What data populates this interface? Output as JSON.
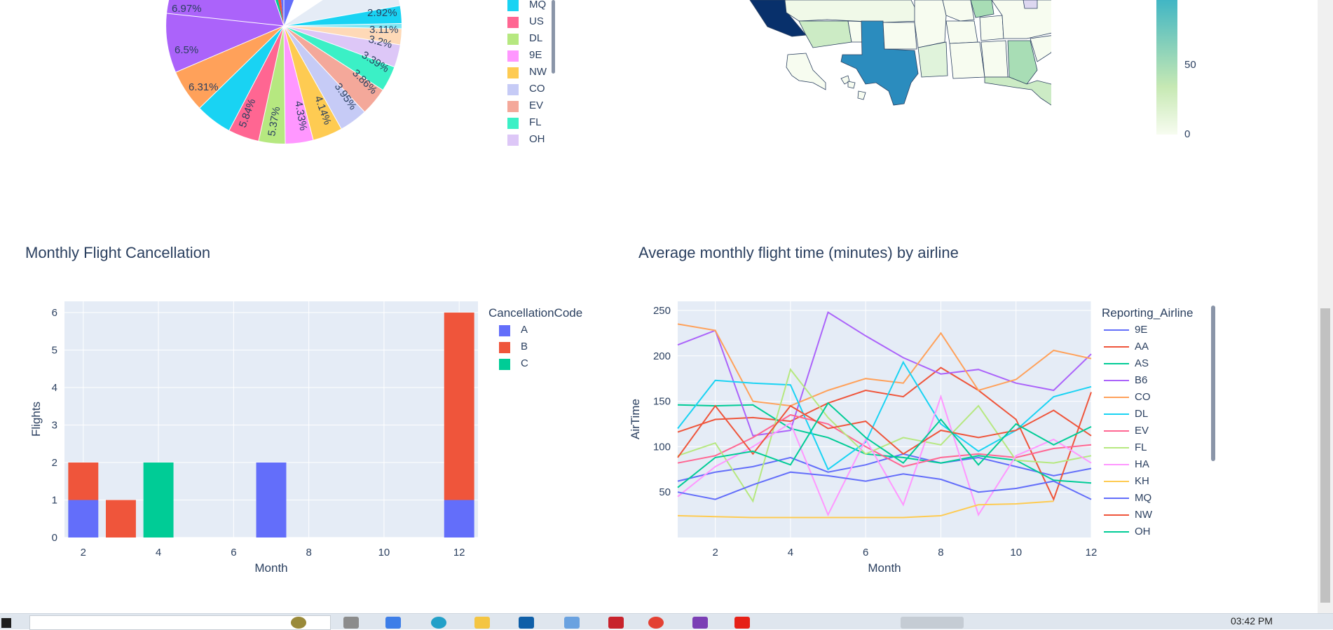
{
  "pie_chart": {
    "labels": [
      "6.97%",
      "6.5%",
      "6.31%",
      "5.84%",
      "5.37%",
      "4.33%",
      "4.14%",
      "3.95%",
      "3.86%",
      "3.39%",
      "3.2%",
      "3.11%",
      "2.92%"
    ],
    "legend": [
      {
        "name": "MQ",
        "color": "#19d3f3"
      },
      {
        "name": "US",
        "color": "#ff6692"
      },
      {
        "name": "DL",
        "color": "#b6e880"
      },
      {
        "name": "9E",
        "color": "#ff97ff"
      },
      {
        "name": "NW",
        "color": "#fecb52"
      },
      {
        "name": "CO",
        "color": "#c6cbf6"
      },
      {
        "name": "EV",
        "color": "#f4a89a"
      },
      {
        "name": "FL",
        "color": "#3bf0c6"
      },
      {
        "name": "OH",
        "color": "#ddc7f7"
      }
    ]
  },
  "map_colorbar": {
    "ticks": [
      "50",
      "0"
    ]
  },
  "bar_chart": {
    "title": "Monthly Flight Cancellation",
    "xlabel": "Month",
    "ylabel": "Flights",
    "legend_title": "CancellationCode",
    "legend": [
      {
        "name": "A",
        "color": "#636efa"
      },
      {
        "name": "B",
        "color": "#ef553b"
      },
      {
        "name": "C",
        "color": "#00cc96"
      }
    ],
    "x_ticks": [
      "2",
      "4",
      "6",
      "8",
      "10",
      "12"
    ],
    "y_ticks": [
      "0",
      "1",
      "2",
      "3",
      "4",
      "5",
      "6"
    ]
  },
  "line_chart": {
    "title": "Average monthly flight time (minutes) by airline",
    "xlabel": "Month",
    "ylabel": "AirTime",
    "legend_title": "Reporting_Airline",
    "x_ticks": [
      "2",
      "4",
      "6",
      "8",
      "10",
      "12"
    ],
    "y_ticks": [
      "50",
      "100",
      "150",
      "200",
      "250"
    ],
    "legend": [
      {
        "name": "9E",
        "color": "#636efa"
      },
      {
        "name": "AA",
        "color": "#ef553b"
      },
      {
        "name": "AS",
        "color": "#00cc96"
      },
      {
        "name": "B6",
        "color": "#ab63fa"
      },
      {
        "name": "CO",
        "color": "#ffa15a"
      },
      {
        "name": "DL",
        "color": "#19d3f3"
      },
      {
        "name": "EV",
        "color": "#ff6692"
      },
      {
        "name": "FL",
        "color": "#b6e880"
      },
      {
        "name": "HA",
        "color": "#ff97ff"
      },
      {
        "name": "KH",
        "color": "#fecb52"
      },
      {
        "name": "MQ",
        "color": "#636efa"
      },
      {
        "name": "NW",
        "color": "#ef553b"
      },
      {
        "name": "OH",
        "color": "#00cc96"
      }
    ]
  },
  "chart_data": [
    {
      "type": "bar",
      "title": "Monthly Flight Cancellation",
      "xlabel": "Month",
      "ylabel": "Flights",
      "legend_title": "CancellationCode",
      "ylim": [
        0,
        6.3
      ],
      "xlim": [
        1.5,
        12.5
      ],
      "series": [
        {
          "name": "A",
          "color": "#636efa",
          "points": [
            {
              "x": 2,
              "y": 1
            },
            {
              "x": 7,
              "y": 2
            },
            {
              "x": 12,
              "y": 1
            }
          ]
        },
        {
          "name": "B",
          "color": "#ef553b",
          "points": [
            {
              "x": 2,
              "y": 1
            },
            {
              "x": 3,
              "y": 1
            },
            {
              "x": 12,
              "y": 5
            }
          ]
        },
        {
          "name": "C",
          "color": "#00cc96",
          "points": [
            {
              "x": 4,
              "y": 2
            }
          ]
        }
      ]
    },
    {
      "type": "line",
      "title": "Average monthly flight time (minutes) by airline",
      "xlabel": "Month",
      "ylabel": "AirTime",
      "legend_title": "Reporting_Airline",
      "x": [
        1,
        2,
        3,
        4,
        5,
        6,
        7,
        8,
        9,
        10,
        11,
        12
      ],
      "ylim": [
        0,
        260
      ],
      "series": [
        {
          "name": "9E",
          "color": "#636efa",
          "values": [
            62,
            72,
            78,
            88,
            72,
            80,
            92,
            82,
            88,
            78,
            68,
            76
          ]
        },
        {
          "name": "AA",
          "color": "#ef553b",
          "values": [
            116,
            130,
            132,
            128,
            148,
            162,
            155,
            187,
            162,
            130,
            42,
            160
          ]
        },
        {
          "name": "AS",
          "color": "#00cc96",
          "values": [
            146,
            145,
            146,
            120,
            110,
            92,
            88,
            82,
            90,
            85,
            63,
            60
          ]
        },
        {
          "name": "B6",
          "color": "#ab63fa",
          "values": [
            212,
            228,
            112,
            118,
            248,
            222,
            198,
            180,
            185,
            170,
            162,
            202
          ]
        },
        {
          "name": "CO",
          "color": "#ffa15a",
          "values": [
            235,
            228,
            150,
            145,
            162,
            175,
            170,
            225,
            162,
            174,
            206,
            197
          ]
        },
        {
          "name": "DL",
          "color": "#19d3f3",
          "values": [
            120,
            173,
            170,
            168,
            75,
            105,
            193,
            125,
            95,
            118,
            155,
            166
          ]
        },
        {
          "name": "EV",
          "color": "#ff6692",
          "values": [
            82,
            90,
            110,
            135,
            125,
            100,
            78,
            88,
            92,
            88,
            98,
            102
          ]
        },
        {
          "name": "FL",
          "color": "#b6e880",
          "values": [
            90,
            104,
            40,
            185,
            132,
            92,
            110,
            102,
            145,
            85,
            82,
            90
          ]
        },
        {
          "name": "HA",
          "color": "#ff97ff",
          "values": [
            45,
            78,
            100,
            126,
            25,
            108,
            36,
            155,
            25,
            90,
            108,
            82
          ]
        },
        {
          "name": "KH",
          "color": "#fecb52",
          "values": [
            24,
            23,
            22,
            22,
            22,
            22,
            22,
            24,
            36,
            37,
            40,
            null
          ]
        },
        {
          "name": "MQ",
          "color": "#636efa",
          "values": [
            50,
            42,
            58,
            72,
            68,
            62,
            70,
            64,
            50,
            54,
            62,
            42
          ]
        },
        {
          "name": "NW",
          "color": "#ef553b",
          "values": [
            88,
            145,
            92,
            145,
            120,
            128,
            92,
            118,
            110,
            118,
            140,
            112
          ]
        },
        {
          "name": "OH",
          "color": "#00cc96",
          "values": [
            55,
            88,
            95,
            80,
            148,
            110,
            82,
            130,
            80,
            125,
            102,
            122
          ]
        }
      ]
    }
  ]
}
